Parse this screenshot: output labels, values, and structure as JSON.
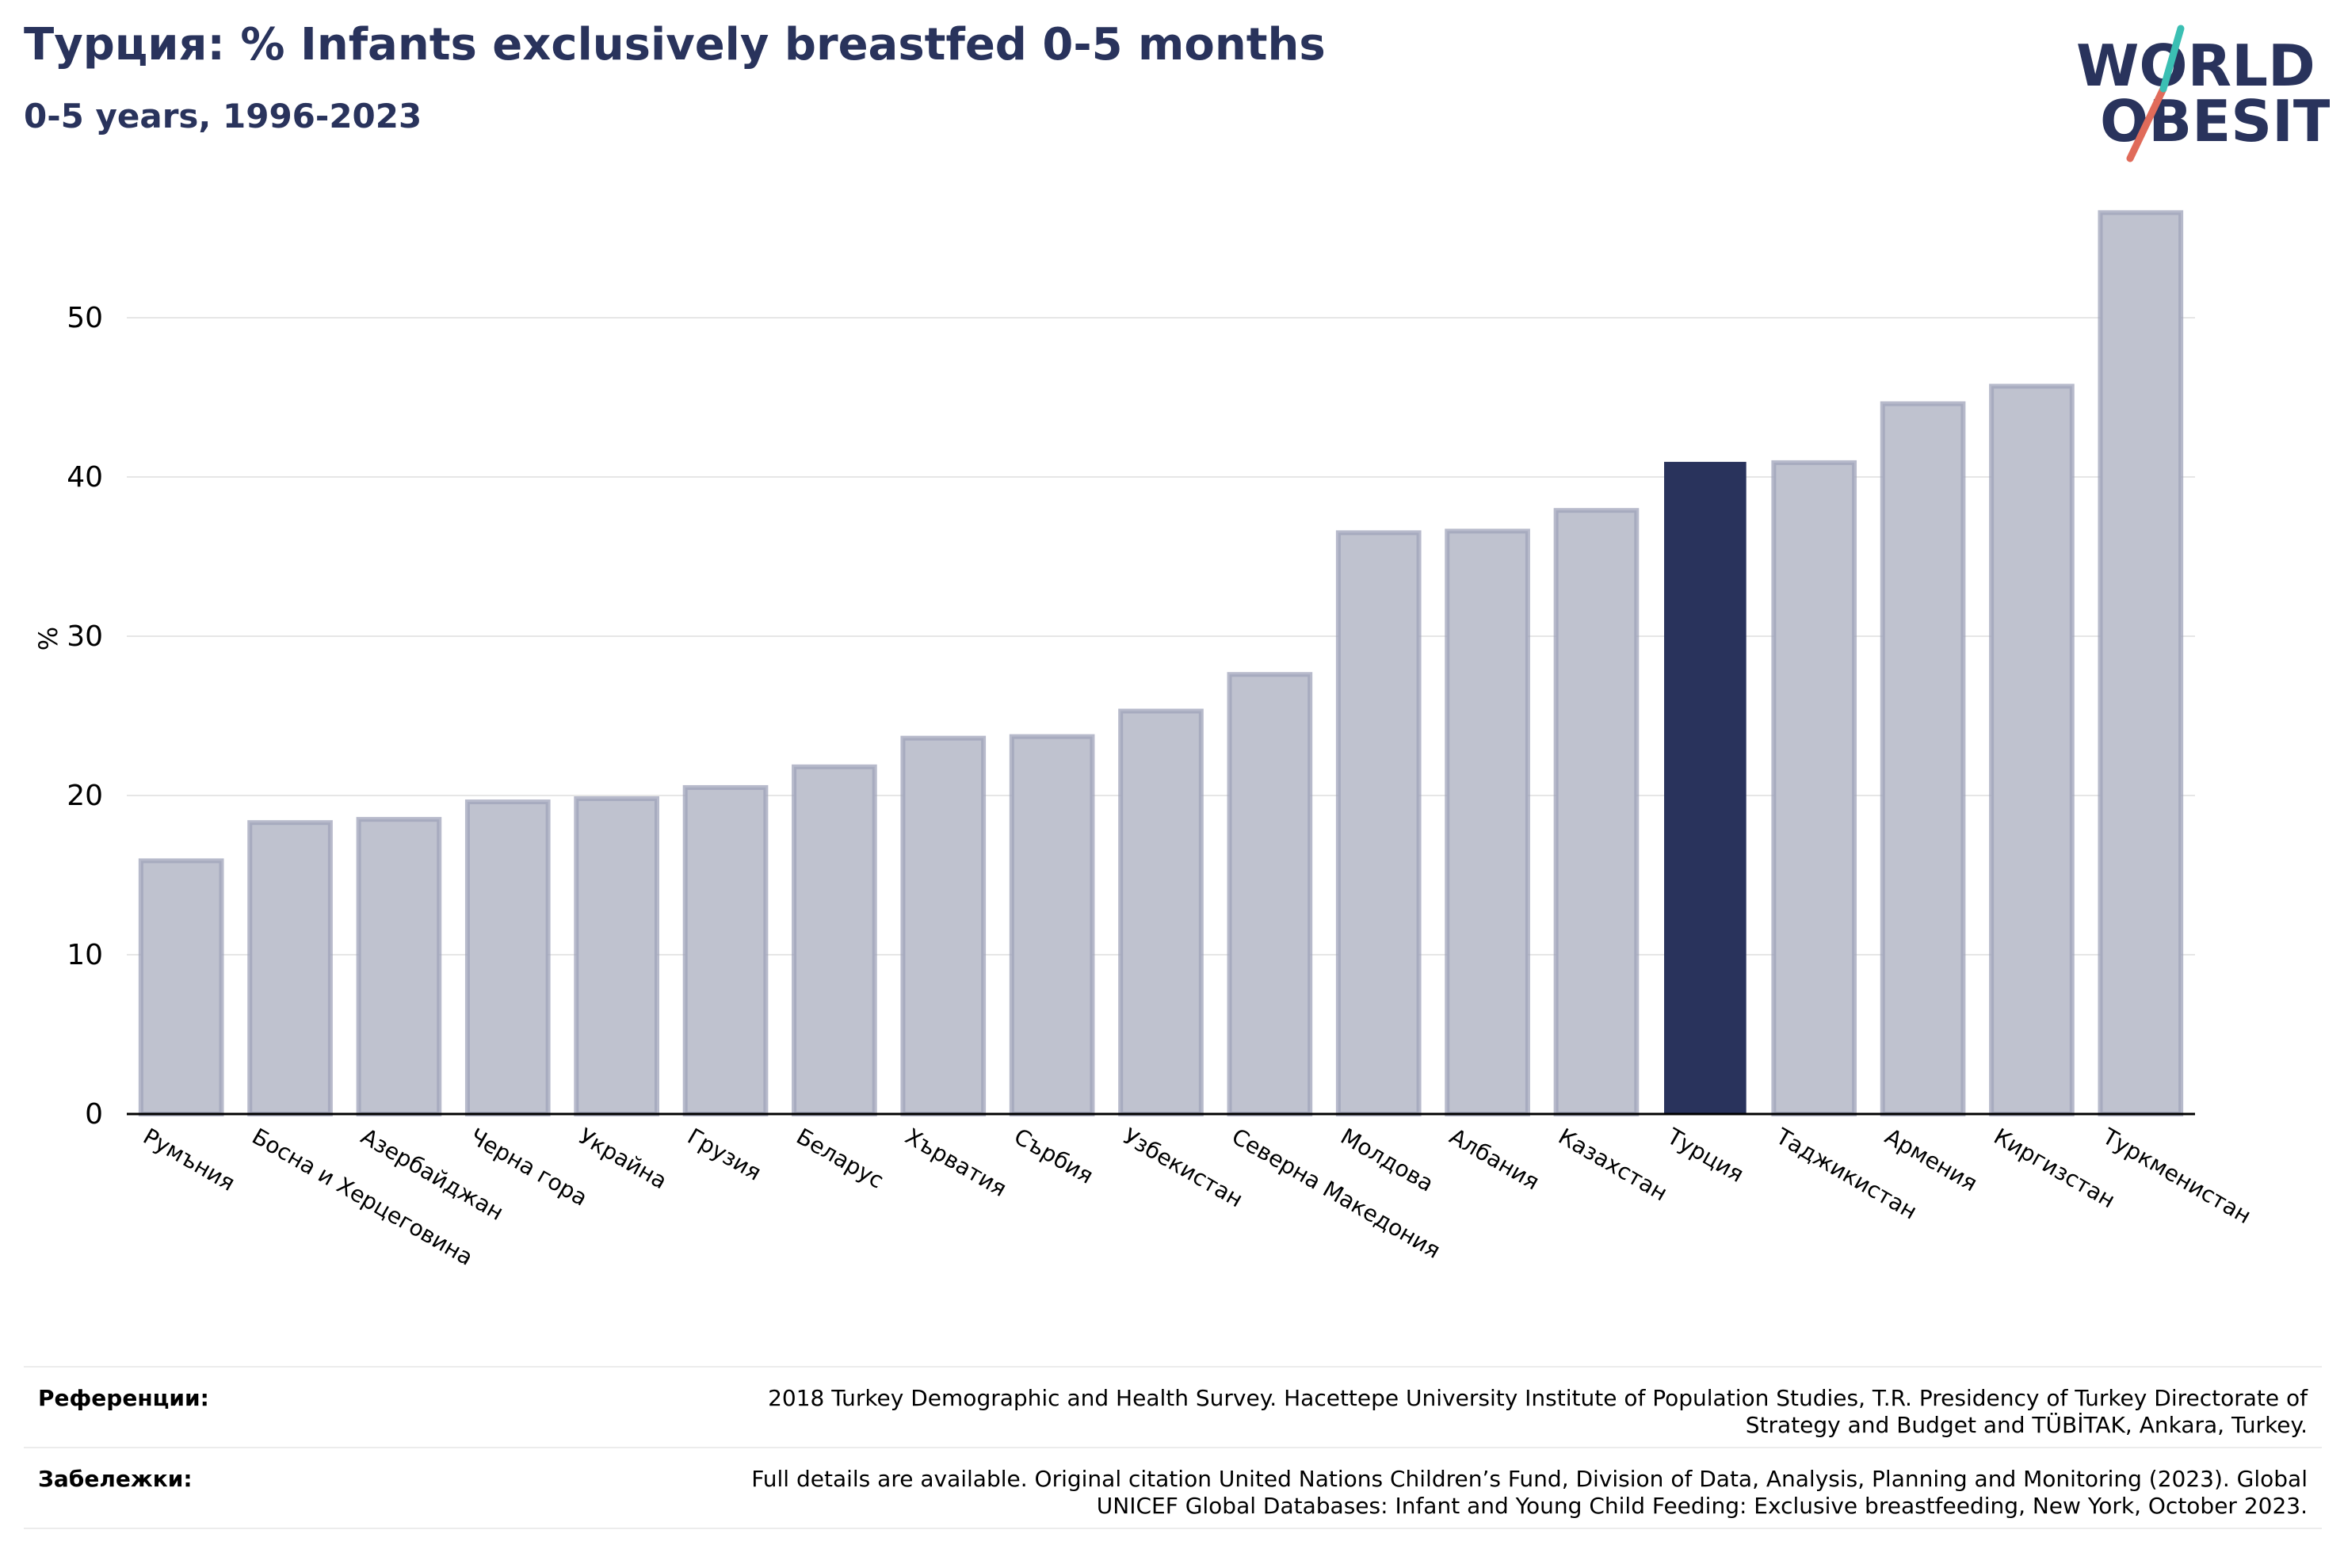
{
  "header": {
    "title": "Турция: % Infants exclusively breastfed 0-5 months",
    "subtitle": "0-5 years, 1996-2023"
  },
  "logo": {
    "line1": "WORLD",
    "line2": "OBESITY"
  },
  "chart_data": {
    "type": "bar",
    "ylabel": "%",
    "ylim": [
      0,
      58
    ],
    "yticks": [
      0,
      10,
      20,
      30,
      40,
      50
    ],
    "grid": true,
    "categories": [
      "Румъния",
      "Босна и Херцеговина",
      "Азербайджан",
      "Черна гора",
      "Украйна",
      "Грузия",
      "Беларус",
      "Хърватия",
      "Сърбия",
      "Узбекистан",
      "Северна Македония",
      "Молдова",
      "Албания",
      "Казахстан",
      "Турция",
      "Таджикистан",
      "Армения",
      "Киргизстан",
      "Туркменистан"
    ],
    "values": [
      15.9,
      18.3,
      18.5,
      19.6,
      19.8,
      20.5,
      21.8,
      23.6,
      23.7,
      25.3,
      27.6,
      36.5,
      36.6,
      37.9,
      40.9,
      40.9,
      44.6,
      45.7,
      56.6
    ],
    "highlight": "Турция",
    "colors": {
      "bar": "#bfc2cf",
      "bar_edge": "#9fa3b9",
      "highlight": "#29335c",
      "grid": "#e6e6e6",
      "axis": "#000000"
    }
  },
  "footer": {
    "references_label": "Референции:",
    "references_line1": "2018 Turkey Demographic and Health Survey. Hacettepe University Institute of Population Studies, T.R. Presidency of Turkey Directorate of",
    "references_line2": "Strategy and Budget and TÜBİTAK, Ankara, Turkey.",
    "notes_label": "Забележки:",
    "notes_line1": "Full details are available. Original citation United Nations Children’s Fund, Division of Data, Analysis, Planning and Monitoring (2023). Global",
    "notes_line2": "UNICEF Global Databases: Infant and Young Child Feeding: Exclusive breastfeeding, New York, October 2023."
  }
}
